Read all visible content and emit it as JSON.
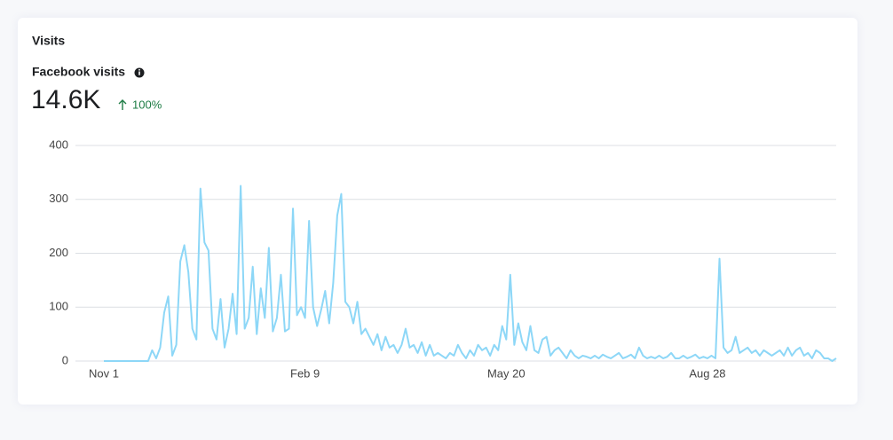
{
  "card_title": "Visits",
  "metric_label": "Facebook visits",
  "metric_value": "14.6K",
  "metric_change": "100%",
  "chart_data": {
    "type": "line",
    "color": "#8dd7f7",
    "grid": true,
    "ylim": [
      0,
      400
    ],
    "yticks": [
      0,
      100,
      200,
      300,
      400
    ],
    "categories": [
      "Nov 1",
      null,
      null,
      null,
      null,
      null,
      null,
      null,
      null,
      null,
      null,
      null,
      null,
      null,
      null,
      null,
      null,
      null,
      null,
      null,
      null,
      null,
      null,
      null,
      null,
      null,
      null,
      null,
      null,
      null,
      null,
      null,
      null,
      null,
      null,
      null,
      null,
      null,
      null,
      null,
      null,
      null,
      null,
      null,
      null,
      null,
      null,
      null,
      null,
      null,
      "Feb 9",
      null,
      null,
      null,
      null,
      null,
      null,
      null,
      null,
      null,
      null,
      null,
      null,
      null,
      null,
      null,
      null,
      null,
      null,
      null,
      null,
      null,
      null,
      null,
      null,
      null,
      null,
      null,
      null,
      null,
      null,
      null,
      null,
      null,
      null,
      null,
      null,
      null,
      null,
      null,
      null,
      null,
      null,
      null,
      null,
      null,
      null,
      null,
      null,
      null,
      "May 20",
      null,
      null,
      null,
      null,
      null,
      null,
      null,
      null,
      null,
      null,
      null,
      null,
      null,
      null,
      null,
      null,
      null,
      null,
      null,
      null,
      null,
      null,
      null,
      null,
      null,
      null,
      null,
      null,
      null,
      null,
      null,
      null,
      null,
      null,
      null,
      null,
      null,
      null,
      null,
      null,
      null,
      null,
      null,
      null,
      null,
      null,
      null,
      null,
      null,
      "Aug 28",
      null,
      null,
      null,
      null,
      null,
      null,
      null,
      null,
      null,
      null,
      null,
      null,
      null,
      null,
      null,
      null,
      null,
      null,
      null,
      null,
      null,
      null,
      null,
      null,
      null,
      null,
      null,
      null,
      null,
      null,
      null,
      null
    ],
    "values": [
      0,
      0,
      0,
      0,
      0,
      0,
      0,
      0,
      0,
      0,
      0,
      0,
      20,
      5,
      25,
      90,
      120,
      10,
      30,
      185,
      215,
      165,
      60,
      40,
      320,
      220,
      205,
      60,
      40,
      115,
      25,
      60,
      125,
      50,
      325,
      60,
      80,
      175,
      50,
      135,
      80,
      210,
      55,
      80,
      160,
      55,
      60,
      283,
      85,
      100,
      80,
      260,
      100,
      65,
      95,
      130,
      70,
      145,
      270,
      310,
      110,
      100,
      70,
      110,
      50,
      60,
      45,
      30,
      50,
      20,
      45,
      25,
      30,
      15,
      30,
      60,
      25,
      30,
      15,
      35,
      10,
      30,
      10,
      15,
      10,
      5,
      15,
      10,
      30,
      15,
      5,
      20,
      10,
      30,
      20,
      25,
      10,
      30,
      20,
      65,
      40,
      160,
      30,
      70,
      35,
      20,
      65,
      20,
      15,
      40,
      45,
      10,
      20,
      25,
      15,
      5,
      20,
      10,
      5,
      10,
      8,
      5,
      10,
      5,
      12,
      8,
      5,
      10,
      15,
      5,
      8,
      12,
      5,
      25,
      10,
      5,
      8,
      5,
      10,
      5,
      8,
      15,
      5,
      5,
      10,
      5,
      8,
      12,
      5,
      8,
      5,
      10,
      5,
      190,
      25,
      15,
      20,
      45,
      15,
      20,
      25,
      15,
      20,
      10,
      20,
      15,
      10,
      15,
      20,
      10,
      25,
      10,
      20,
      25,
      10,
      15,
      5,
      20,
      15,
      5,
      5,
      0,
      5
    ]
  }
}
